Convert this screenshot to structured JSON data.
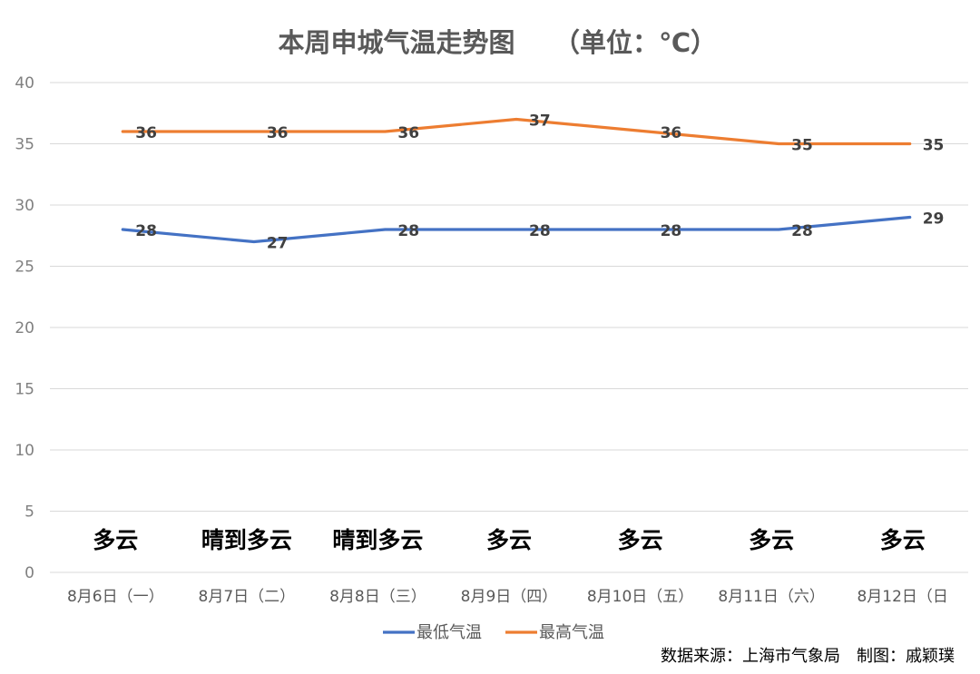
{
  "chart_data": {
    "type": "line",
    "title": "本周申城气温走势图",
    "title_unit": "（单位：℃）",
    "categories": [
      "8月6日（一）",
      "8月7日（二）",
      "8月8日（三）",
      "8月9日（四）",
      "8月10日（五）",
      "8月11日（六）",
      "8月12日（日"
    ],
    "weather": [
      "多云",
      "晴到多云",
      "晴到多云",
      "多云",
      "多云",
      "多云",
      "多云"
    ],
    "series": [
      {
        "name": "最低气温",
        "color": "#4472c4",
        "values": [
          28,
          27,
          28,
          28,
          28,
          28,
          29
        ]
      },
      {
        "name": "最高气温",
        "color": "#ed7d31",
        "values": [
          36,
          36,
          36,
          37,
          36,
          35,
          35
        ]
      }
    ],
    "ylim": [
      0,
      40
    ],
    "yticks": [
      0,
      5,
      10,
      15,
      20,
      25,
      30,
      35,
      40
    ],
    "grid": true,
    "legend_position": "bottom"
  },
  "footer": {
    "source": "数据来源：上海市气象局　制图：戚颖璞"
  }
}
